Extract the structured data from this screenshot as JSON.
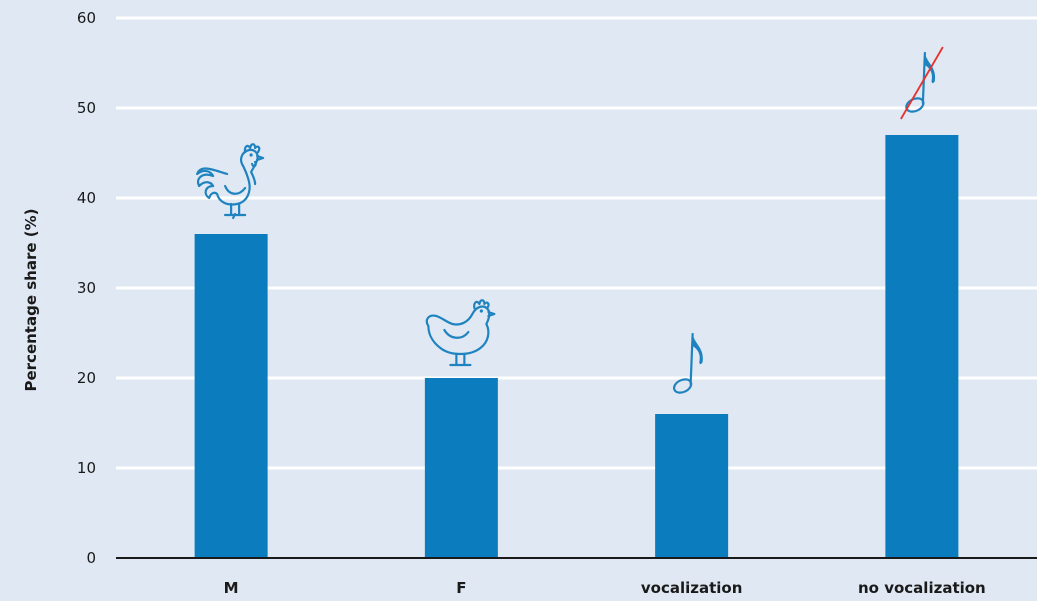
{
  "chart_data": {
    "type": "bar",
    "categories": [
      "M",
      "F",
      "vocalization",
      "no vocalization"
    ],
    "values": [
      36,
      20,
      16,
      47
    ],
    "title": "",
    "xlabel": "",
    "ylabel": "Percentage share (%)",
    "ylim": [
      0,
      60
    ],
    "yticks": [
      0,
      10,
      20,
      30,
      40,
      50,
      60
    ],
    "grid": true,
    "bar_color": "#0b7dbf",
    "grid_color": "#ffffff",
    "background_color": "#dfe8f3",
    "icons": [
      "rooster-icon",
      "hen-icon",
      "music-note-icon",
      "crossed-music-note-icon"
    ],
    "icon_color": "#1f83c0",
    "strike_color": "#e8322c"
  }
}
